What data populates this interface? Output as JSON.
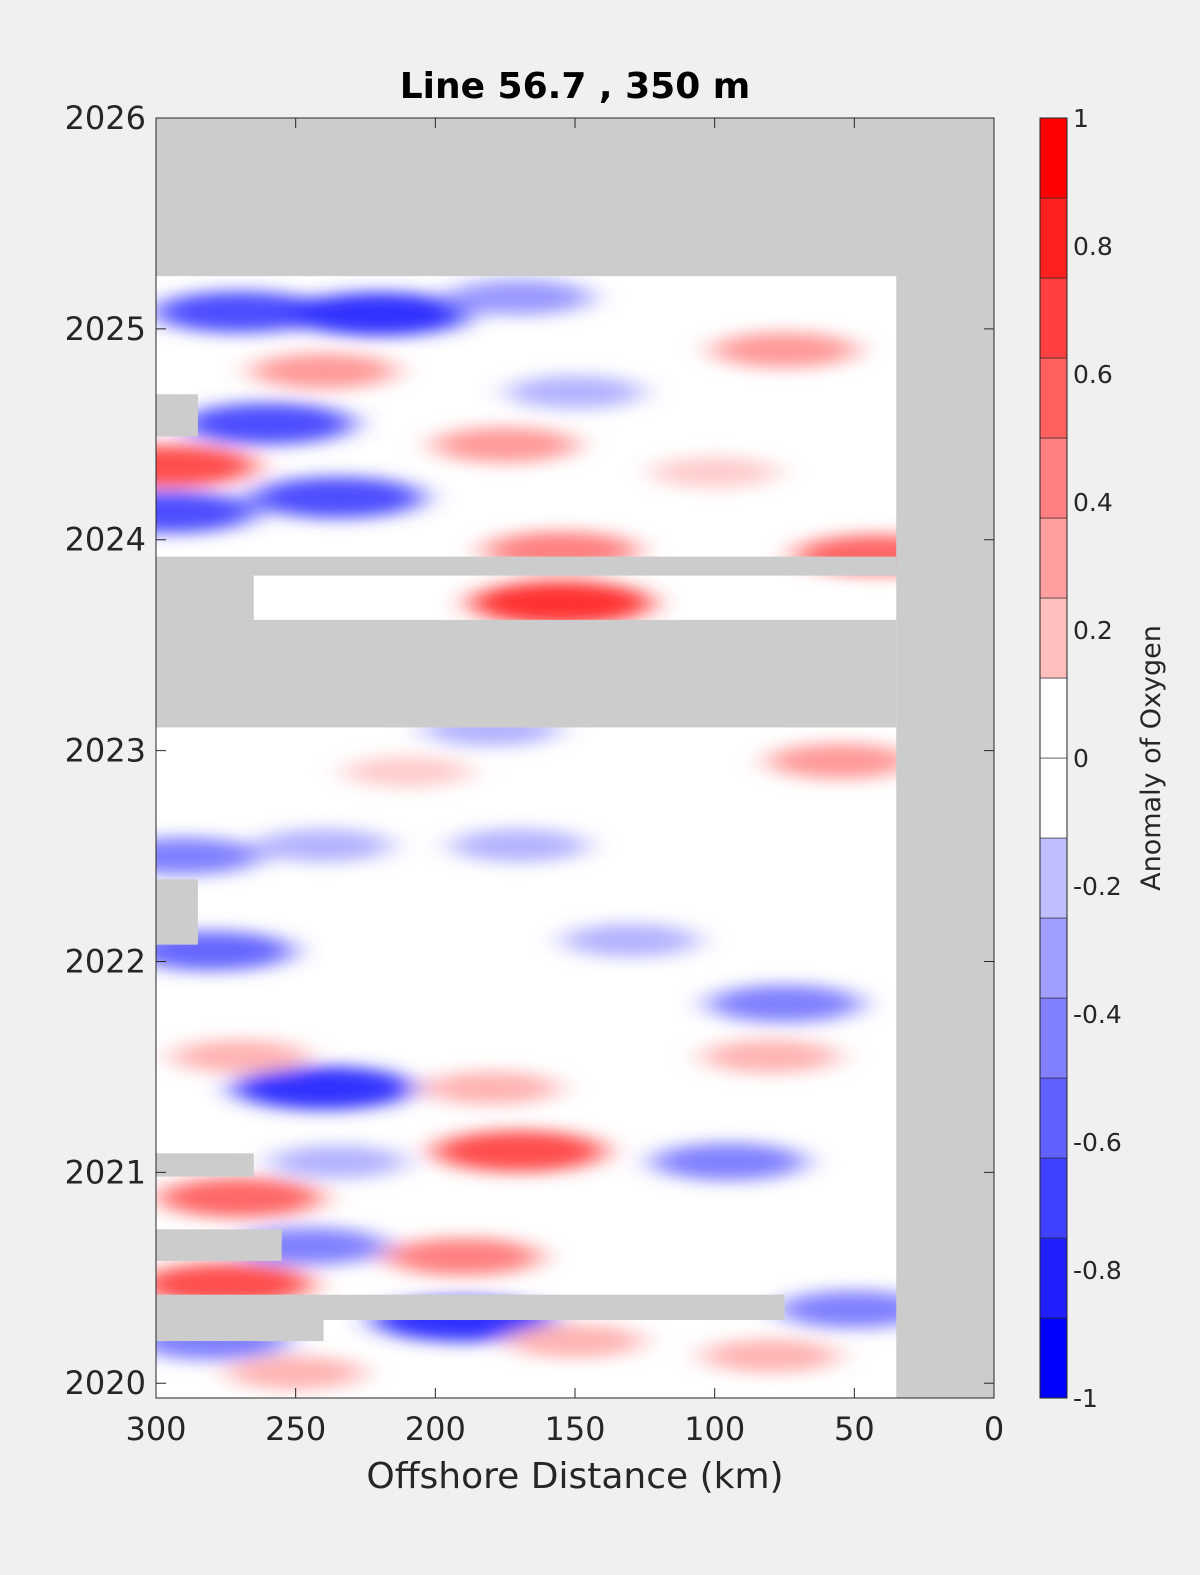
{
  "chart_data": {
    "type": "heatmap",
    "title": "Line 56.7 , 350 m",
    "xlabel": "Offshore Distance (km)",
    "ylabel": "",
    "xlim": [
      300,
      0
    ],
    "ylim": [
      2019.93,
      2026
    ],
    "x_ticks": [
      300,
      250,
      200,
      150,
      100,
      50,
      0
    ],
    "y_ticks": [
      2020,
      2021,
      2022,
      2023,
      2024,
      2025,
      2026
    ],
    "colorbar": {
      "label": "Anomaly of Oxygen",
      "range": [
        -1,
        1
      ],
      "levels": 16,
      "ticks": [
        1,
        0.8,
        0.6,
        0.4,
        0.2,
        0,
        -0.2,
        -0.4,
        -0.6,
        -0.8,
        -1
      ],
      "tick_labels": [
        "1",
        "0.8",
        "0.6",
        "0.4",
        "0.2",
        "0",
        "-0.2",
        "-0.4",
        "-0.6",
        "-0.8",
        "-1"
      ]
    },
    "colors": {
      "no_data": "#cccccc",
      "positive": "#ff0000",
      "negative": "#0000ff",
      "zero": "#ffffff"
    },
    "no_data_regions": [
      {
        "x": [
          0,
          300
        ],
        "y": [
          2025.25,
          2026
        ]
      },
      {
        "x": [
          0,
          35
        ],
        "y": [
          2019.93,
          2026
        ]
      },
      {
        "x": [
          35,
          300
        ],
        "y": [
          2023.11,
          2023.62
        ]
      },
      {
        "x": [
          35,
          300
        ],
        "y": [
          2023.83,
          2023.92
        ]
      },
      {
        "x": [
          265,
          300
        ],
        "y": [
          2023.62,
          2023.83
        ]
      },
      {
        "x": [
          285,
          300
        ],
        "y": [
          2024.49,
          2024.69
        ]
      },
      {
        "x": [
          285,
          300
        ],
        "y": [
          2022.08,
          2022.39
        ]
      },
      {
        "x": [
          265,
          300
        ],
        "y": [
          2020.98,
          2021.09
        ]
      },
      {
        "x": [
          255,
          300
        ],
        "y": [
          2020.58,
          2020.73
        ]
      },
      {
        "x": [
          75,
          300
        ],
        "y": [
          2020.3,
          2020.42
        ]
      },
      {
        "x": [
          240,
          300
        ],
        "y": [
          2020.2,
          2020.3
        ]
      }
    ],
    "anomalies": [
      {
        "x": 270,
        "y": 2025.08,
        "value": -0.7
      },
      {
        "x": 220,
        "y": 2025.07,
        "value": -0.8
      },
      {
        "x": 170,
        "y": 2025.15,
        "value": -0.4
      },
      {
        "x": 240,
        "y": 2024.8,
        "value": 0.4
      },
      {
        "x": 260,
        "y": 2024.55,
        "value": -0.7
      },
      {
        "x": 295,
        "y": 2024.35,
        "value": 0.7
      },
      {
        "x": 175,
        "y": 2024.45,
        "value": 0.4
      },
      {
        "x": 100,
        "y": 2024.32,
        "value": 0.2
      },
      {
        "x": 235,
        "y": 2024.2,
        "value": -0.7
      },
      {
        "x": 295,
        "y": 2024.13,
        "value": -0.7
      },
      {
        "x": 150,
        "y": 2024.7,
        "value": -0.3
      },
      {
        "x": 75,
        "y": 2024.9,
        "value": 0.4
      },
      {
        "x": 155,
        "y": 2023.95,
        "value": 0.5
      },
      {
        "x": 42,
        "y": 2023.93,
        "value": 0.6
      },
      {
        "x": 155,
        "y": 2023.7,
        "value": 0.8
      },
      {
        "x": 180,
        "y": 2023.1,
        "value": -0.3
      },
      {
        "x": 55,
        "y": 2022.95,
        "value": 0.4
      },
      {
        "x": 210,
        "y": 2022.9,
        "value": 0.2
      },
      {
        "x": 290,
        "y": 2022.5,
        "value": -0.5
      },
      {
        "x": 240,
        "y": 2022.55,
        "value": -0.3
      },
      {
        "x": 170,
        "y": 2022.55,
        "value": -0.3
      },
      {
        "x": 280,
        "y": 2022.05,
        "value": -0.6
      },
      {
        "x": 130,
        "y": 2022.1,
        "value": -0.3
      },
      {
        "x": 75,
        "y": 2021.8,
        "value": -0.5
      },
      {
        "x": 240,
        "y": 2021.4,
        "value": -0.8
      },
      {
        "x": 180,
        "y": 2021.4,
        "value": 0.3
      },
      {
        "x": 80,
        "y": 2021.55,
        "value": 0.3
      },
      {
        "x": 270,
        "y": 2021.55,
        "value": 0.3
      },
      {
        "x": 170,
        "y": 2021.1,
        "value": 0.7
      },
      {
        "x": 95,
        "y": 2021.05,
        "value": -0.5
      },
      {
        "x": 235,
        "y": 2021.05,
        "value": -0.3
      },
      {
        "x": 270,
        "y": 2020.88,
        "value": 0.6
      },
      {
        "x": 245,
        "y": 2020.65,
        "value": -0.5
      },
      {
        "x": 190,
        "y": 2020.6,
        "value": 0.5
      },
      {
        "x": 275,
        "y": 2020.47,
        "value": 0.7
      },
      {
        "x": 190,
        "y": 2020.3,
        "value": -0.8
      },
      {
        "x": 50,
        "y": 2020.35,
        "value": -0.5
      },
      {
        "x": 80,
        "y": 2020.13,
        "value": 0.3
      },
      {
        "x": 150,
        "y": 2020.2,
        "value": 0.3
      },
      {
        "x": 280,
        "y": 2020.2,
        "value": -0.5
      },
      {
        "x": 250,
        "y": 2020.05,
        "value": 0.3
      }
    ]
  }
}
